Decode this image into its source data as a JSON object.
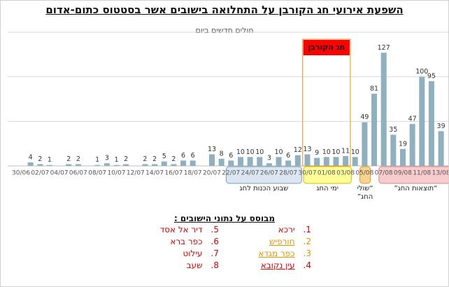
{
  "chart_data": {
    "type": "bar",
    "title": "השפעת אירועי חג הקורבן על התחלואה בישובים אשר בסטטוס כתום-אדום",
    "subtitle": "חולים חדשים ביום",
    "categories": [
      "30/06",
      null,
      "02/07",
      null,
      "04/07",
      null,
      "06/07",
      null,
      "08/07",
      null,
      "10/07",
      null,
      "12/07",
      null,
      "14/07",
      null,
      "16/07",
      null,
      "18/07",
      null,
      "20/07",
      null,
      "22/07",
      null,
      "24/07",
      null,
      "26/07",
      null,
      "28/07",
      null,
      "30/07",
      null,
      "01/08",
      null,
      "03/08",
      null,
      "05/08",
      null,
      "07/08",
      null,
      "09/08",
      null,
      "11/08",
      null,
      "13/08"
    ],
    "values": [
      0,
      4,
      2,
      1,
      0,
      2,
      2,
      0,
      1,
      3,
      1,
      2,
      0,
      2,
      2,
      5,
      2,
      6,
      6,
      0,
      13,
      8,
      6,
      10,
      10,
      10,
      3,
      10,
      6,
      12,
      13,
      9,
      10,
      10,
      11,
      10,
      49,
      81,
      127,
      35,
      19,
      47,
      100,
      95,
      39
    ],
    "color": "#8fb1bf",
    "ylim": [
      0,
      150
    ],
    "yticks": [
      0,
      50,
      100,
      150
    ],
    "grid": true,
    "annotations": [
      {
        "text": "חג הקורבן",
        "color": "#ff0000"
      }
    ],
    "groups": [
      {
        "text": "שבוע הכנות לחג",
        "color": "#dce6f2"
      },
      {
        "text": "ימי החג",
        "color": "#ffff99"
      },
      {
        "text": "“שולי החג”",
        "color": "#fcd38e"
      },
      {
        "text": "“תוצאות החג”",
        "color": "#f8cbcc"
      }
    ],
    "source_title": "מבוסס על נתוני הישובים :",
    "sources": [
      {
        "num": "1.",
        "name": "ירכא",
        "color": "#e00000"
      },
      {
        "num": "2.",
        "name": "חורפיש",
        "color": "#e69500"
      },
      {
        "num": "3.",
        "name": "כפר מגדא",
        "color": "#e69500"
      },
      {
        "num": "4.",
        "name": "עין נקובא",
        "color": "#e00000"
      },
      {
        "num": "5.",
        "name": "דיר אל אסד",
        "color": "#e00000"
      },
      {
        "num": "6.",
        "name": "כפר ברא",
        "color": "#e00000"
      },
      {
        "num": "7.",
        "name": "עילוט",
        "color": "#e00000"
      },
      {
        "num": "8.",
        "name": "שעב",
        "color": "#e00000"
      }
    ]
  }
}
